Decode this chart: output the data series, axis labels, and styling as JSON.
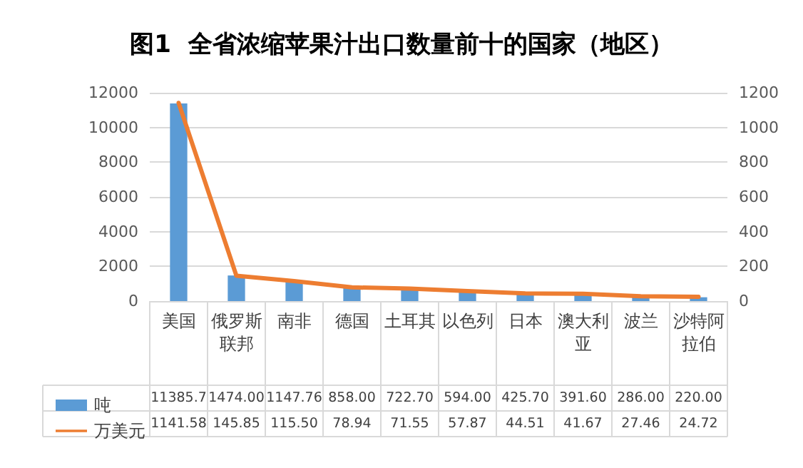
{
  "chart_data": {
    "type": "bar",
    "title": "图1  全省浓缩苹果汁出口数量前十的国家（地区）",
    "categories": [
      "美国",
      "俄罗斯联邦",
      "南非",
      "德国",
      "土耳其",
      "以色列",
      "日本",
      "澳大利亚",
      "波兰",
      "沙特阿拉伯"
    ],
    "series": [
      {
        "name": "吨",
        "color": "#5b9bd5",
        "values": [
          11385.7,
          1474.0,
          1147.76,
          858.0,
          722.7,
          594.0,
          425.7,
          391.6,
          286.0,
          220.0
        ],
        "value_labels": [
          "11385.7",
          "1474.00",
          "1147.76",
          "858.00",
          "722.70",
          "594.00",
          "425.70",
          "391.60",
          "286.00",
          "220.00"
        ]
      },
      {
        "name": "万美元",
        "type": "line",
        "axis": "y2",
        "color": "#ed7d31",
        "values": [
          1141.58,
          145.85,
          115.5,
          78.94,
          71.55,
          57.87,
          44.51,
          41.67,
          27.46,
          24.72
        ],
        "value_labels": [
          "1141.58",
          "145.85",
          "115.50",
          "78.94",
          "71.55",
          "57.87",
          "44.51",
          "41.67",
          "27.46",
          "24.72"
        ]
      }
    ],
    "ylim": [
      0,
      12000
    ],
    "yticks": [
      0,
      2000,
      4000,
      6000,
      8000,
      10000,
      12000
    ],
    "y2lim": [
      0,
      1200
    ],
    "y2ticks": [
      0,
      200,
      400,
      600,
      800,
      1000,
      1200
    ],
    "grid": "y",
    "legend": "bottom left",
    "marker": "none",
    "line_style": "solid"
  }
}
